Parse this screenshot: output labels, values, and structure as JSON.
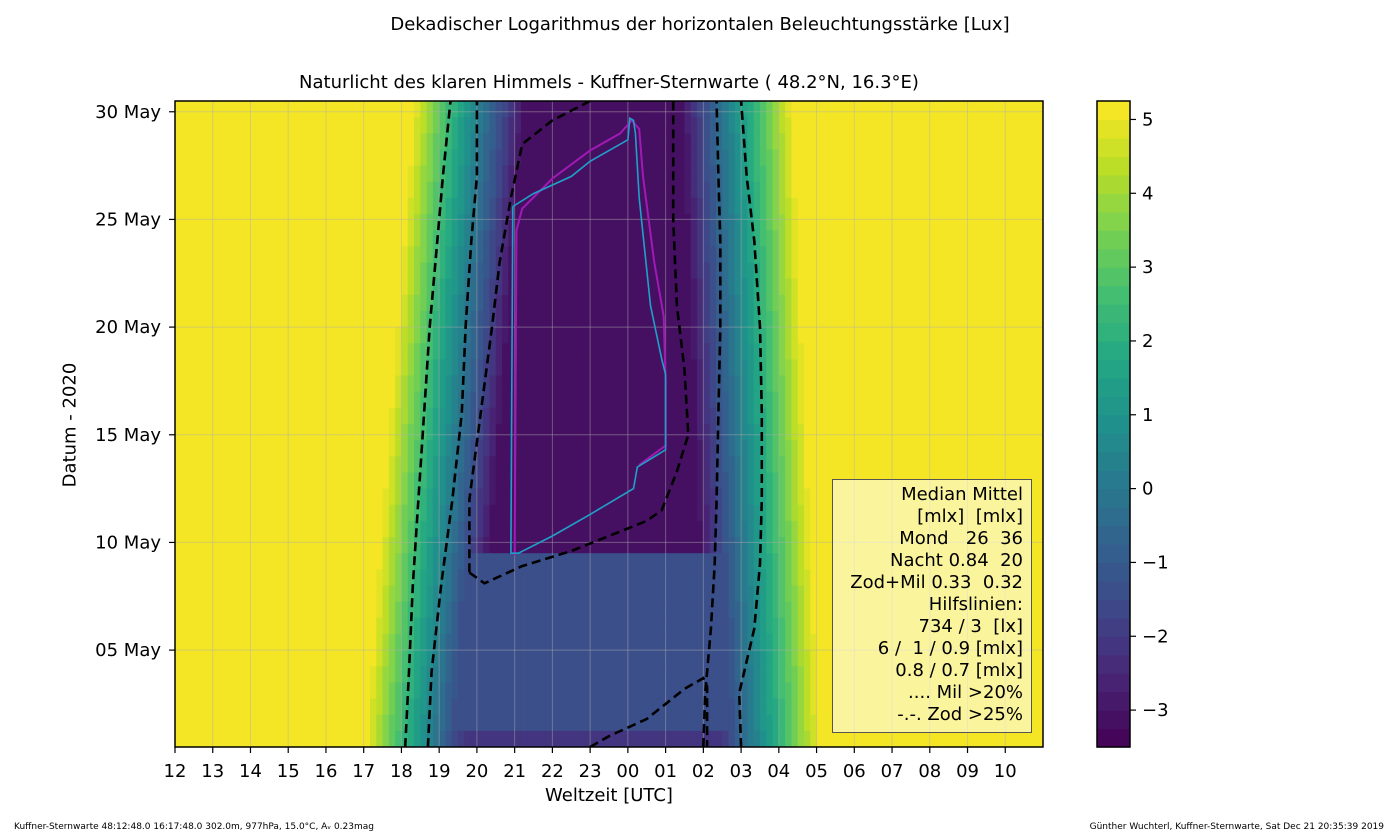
{
  "suptitle": "Dekadischer Logarithmus der horizontalen Beleuchtungsstärke [Lux]",
  "chart_data": {
    "type": "heatmap",
    "title": "Naturlicht des klaren Himmels - Kuffner-Sternwarte ( 48.2°N, 16.3°E)",
    "xlabel": "Weltzeit [UTC]",
    "ylabel": "Datum - 2020",
    "xticks": [
      "12",
      "13",
      "14",
      "15",
      "16",
      "17",
      "18",
      "19",
      "20",
      "21",
      "22",
      "23",
      "00",
      "01",
      "02",
      "03",
      "04",
      "05",
      "06",
      "07",
      "08",
      "09",
      "10"
    ],
    "yticks": [
      {
        "day": 5,
        "label": "05 May"
      },
      {
        "day": 10,
        "label": "10 May"
      },
      {
        "day": 15,
        "label": "15 May"
      },
      {
        "day": 20,
        "label": "20 May"
      },
      {
        "day": 25,
        "label": "25 May"
      },
      {
        "day": 30,
        "label": "30 May"
      }
    ],
    "xlim_hours": [
      12,
      35
    ],
    "ylim_day": [
      0.5,
      30.5
    ],
    "colorbar": {
      "range": [
        -3.5,
        5.25
      ],
      "levels_step": 0.25,
      "ticks": [
        -3,
        -2,
        -1,
        0,
        1,
        2,
        3,
        4,
        5
      ],
      "tick_labels": [
        "−3",
        "−2",
        "−1",
        "0",
        "1",
        "2",
        "3",
        "4",
        "5"
      ],
      "colormap": "viridis"
    },
    "contour_evening_outer": [
      [
        18.1,
        0.5
      ],
      [
        18.2,
        4
      ],
      [
        18.3,
        8
      ],
      [
        18.45,
        12
      ],
      [
        18.6,
        16
      ],
      [
        18.75,
        20
      ],
      [
        18.95,
        24
      ],
      [
        19.1,
        27
      ],
      [
        19.3,
        30.5
      ]
    ],
    "contour_evening_inner": [
      [
        18.7,
        0.5
      ],
      [
        18.8,
        4
      ],
      [
        19.05,
        8
      ],
      [
        19.35,
        12
      ],
      [
        19.6,
        16
      ],
      [
        19.7,
        20
      ],
      [
        19.85,
        24
      ],
      [
        20.0,
        27
      ],
      [
        20.0,
        30.5
      ]
    ],
    "contour_morning_inner": [
      [
        2.0,
        0.5
      ],
      [
        2.05,
        3
      ],
      [
        2.2,
        6
      ],
      [
        2.3,
        9
      ],
      [
        2.35,
        12
      ],
      [
        2.4,
        16
      ],
      [
        2.45,
        20
      ],
      [
        2.45,
        24
      ],
      [
        2.4,
        27
      ],
      [
        2.35,
        30.5
      ]
    ],
    "contour_morning_outer": [
      [
        3.0,
        0.5
      ],
      [
        2.95,
        3
      ],
      [
        3.35,
        6
      ],
      [
        3.5,
        9
      ],
      [
        3.55,
        12
      ],
      [
        3.55,
        16
      ],
      [
        3.5,
        20
      ],
      [
        3.35,
        24
      ],
      [
        3.15,
        27
      ],
      [
        3.0,
        30.5
      ]
    ],
    "contour_night": [
      [
        19.8,
        8.6
      ],
      [
        20.2,
        8.1
      ],
      [
        21.2,
        8.9
      ],
      [
        22.5,
        9.6
      ],
      [
        23.5,
        10.3
      ],
      [
        24.5,
        11.0
      ],
      [
        24.9,
        11.5
      ],
      [
        25.3,
        13.3
      ],
      [
        25.6,
        15.0
      ],
      [
        25.5,
        18.0
      ],
      [
        25.3,
        21.0
      ],
      [
        25.2,
        25.0
      ],
      [
        25.2,
        28.0
      ],
      [
        25.2,
        30.5
      ]
    ],
    "contour_night_left": [
      [
        23.0,
        30.5
      ],
      [
        22.0,
        29.6
      ],
      [
        21.2,
        28.5
      ],
      [
        20.9,
        26.0
      ],
      [
        20.6,
        23.0
      ],
      [
        20.4,
        20.0
      ],
      [
        20.1,
        16.0
      ],
      [
        19.8,
        12.0
      ],
      [
        19.8,
        8.6
      ]
    ],
    "contour_moon_bottom": [
      [
        23.0,
        0.5
      ],
      [
        23.5,
        1.0
      ],
      [
        24.5,
        1.8
      ],
      [
        25.5,
        3.2
      ],
      [
        26.0,
        3.7
      ],
      [
        26.1,
        3.3
      ],
      [
        26.1,
        0.5
      ]
    ],
    "cyan_polygon": [
      [
        20.95,
        25.6
      ],
      [
        21.5,
        26.2
      ],
      [
        22.5,
        27.0
      ],
      [
        23.0,
        27.7
      ],
      [
        24.0,
        28.7
      ],
      [
        24.05,
        29.7
      ],
      [
        24.15,
        29.6
      ],
      [
        24.2,
        29.0
      ],
      [
        24.3,
        26.0
      ],
      [
        24.6,
        21.0
      ],
      [
        24.9,
        18.5
      ],
      [
        25.0,
        17.8
      ],
      [
        25.0,
        14.3
      ],
      [
        24.25,
        13.5
      ],
      [
        24.15,
        12.5
      ],
      [
        23.0,
        11.3
      ],
      [
        22.0,
        10.3
      ],
      [
        21.1,
        9.5
      ],
      [
        20.9,
        9.5
      ],
      [
        20.95,
        25.6
      ]
    ],
    "magenta_line": [
      [
        21.0,
        9.4
      ],
      [
        21.05,
        24.5
      ],
      [
        21.2,
        25.5
      ],
      [
        22.0,
        26.9
      ],
      [
        23.0,
        28.2
      ],
      [
        23.8,
        29.0
      ],
      [
        24.1,
        29.6
      ],
      [
        24.3,
        29.2
      ],
      [
        24.4,
        27.0
      ],
      [
        24.7,
        23.0
      ],
      [
        24.95,
        20.5
      ],
      [
        25.0,
        17.5
      ],
      [
        25.0,
        14.5
      ],
      [
        24.3,
        13.6
      ]
    ],
    "legend_lines": [
      "Median Mittel",
      "[mlx]  [mlx]",
      "Mond   26  36",
      "Nacht 0.84  20",
      "Zod+Mil 0.33  0.32",
      "Hilfslinien:",
      "734 / 3  [lx]",
      "6 /  1 / 0.9 [mlx]",
      "0.8 / 0.7 [mlx]",
      ".... Mil >20%",
      "-.-. Zod >25%"
    ]
  },
  "footer": {
    "left": "Kuffner-Sternwarte 48:12:48.0 16:17:48.0 302.0m,  977hPa, 15.0°C, Aᵥ 0.23mag",
    "right": "Günther Wuchterl, Kuffner-Sternwarte, Sat Dec 21 20:35:39 2019"
  },
  "colors": {
    "contour_dashed": "#000000",
    "line_cyan": "#1fa0c8",
    "line_magenta": "#a01ab4"
  }
}
